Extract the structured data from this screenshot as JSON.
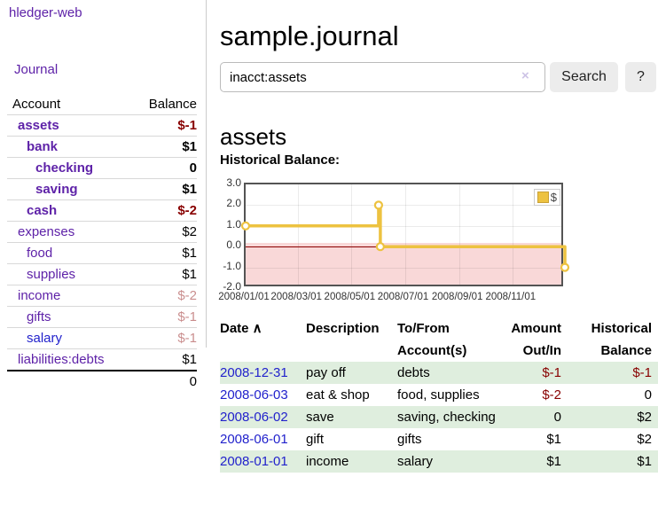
{
  "colors": {
    "purple": "#5e22a8",
    "blue": "#2222cc",
    "negative": "#880000",
    "row_green": "#dfeede",
    "gold": "#edc240",
    "pink": "#f9d8d8",
    "zero": "#8b0000"
  },
  "sidebar": {
    "brand": "hledger-web",
    "journal_link": "Journal",
    "accounts": {
      "headers": {
        "account": "Account",
        "balance": "Balance"
      },
      "rows": [
        {
          "name": "assets",
          "level": 1,
          "bold": true,
          "balance": "$-1",
          "balance_class": "neg"
        },
        {
          "name": "bank",
          "level": 2,
          "bold": true,
          "balance": "$1",
          "balance_class": ""
        },
        {
          "name": "checking",
          "level": 3,
          "bold": true,
          "balance": "0",
          "balance_class": ""
        },
        {
          "name": "saving",
          "level": 3,
          "bold": true,
          "balance": "$1",
          "balance_class": ""
        },
        {
          "name": "cash",
          "level": 2,
          "bold": true,
          "balance": "$-2",
          "balance_class": "neg"
        },
        {
          "name": "expenses",
          "level": 1,
          "bold": false,
          "balance": "$2",
          "balance_class": ""
        },
        {
          "name": "food",
          "level": 2,
          "bold": false,
          "balance": "$1",
          "balance_class": ""
        },
        {
          "name": "supplies",
          "level": 2,
          "bold": false,
          "balance": "$1",
          "balance_class": ""
        },
        {
          "name": "income",
          "level": 1,
          "bold": false,
          "balance": "$-2",
          "balance_class": "neg-muted"
        },
        {
          "name": "gifts",
          "level": 2,
          "bold": false,
          "balance": "$-1",
          "balance_class": "neg-muted"
        },
        {
          "name": "salary",
          "level": 2,
          "bold": false,
          "link_color": "blue",
          "balance": "$-1",
          "balance_class": "neg-muted"
        },
        {
          "name": "liabilities:debts",
          "level": 1,
          "bold": false,
          "balance": "$1",
          "balance_class": ""
        }
      ],
      "total": "0"
    }
  },
  "header": {
    "title": "sample.journal"
  },
  "search": {
    "query": "inacct:assets",
    "clear_icon": "×",
    "button_label": "Search",
    "help_label": "?"
  },
  "account_page": {
    "title": "assets",
    "chart_heading": "Historical Balance:"
  },
  "chart_data": {
    "type": "line",
    "title": "Historical Balance",
    "step": true,
    "legend": "$",
    "legend_position": "top-right",
    "grid": true,
    "x_start": "2008-01-01",
    "x_end": "2008-12-31",
    "ylim": [
      -2,
      3
    ],
    "y_ticks": [
      3.0,
      2.0,
      1.0,
      0.0,
      -1.0,
      -2.0
    ],
    "x_ticks": [
      {
        "date": "2008-01-01",
        "label": "2008/01/01"
      },
      {
        "date": "2008-03-01",
        "label": "2008/03/01"
      },
      {
        "date": "2008-05-01",
        "label": "2008/05/01"
      },
      {
        "date": "2008-07-01",
        "label": "2008/07/01"
      },
      {
        "date": "2008-09-01",
        "label": "2008/09/01"
      },
      {
        "date": "2008-11-01",
        "label": "2008/11/01"
      }
    ],
    "series": [
      {
        "name": "$",
        "color": "#edc240",
        "points": [
          {
            "date": "2008-01-01",
            "value": 1
          },
          {
            "date": "2008-06-01",
            "value": 2
          },
          {
            "date": "2008-06-03",
            "value": 0
          },
          {
            "date": "2008-12-31",
            "value": -1
          }
        ]
      }
    ]
  },
  "register": {
    "columns": [
      {
        "label": "Date",
        "align": "left",
        "sorted": true
      },
      {
        "label": "Description",
        "align": "left"
      },
      {
        "label": "To/From Account(s)",
        "align": "left"
      },
      {
        "label": "Amount Out/In",
        "align": "right"
      },
      {
        "label": "Historical Balance",
        "align": "right"
      }
    ],
    "sort_indicator": "∧",
    "rows": [
      {
        "date": "2008-12-31",
        "description": "pay off",
        "accounts": "debts",
        "amount": "$-1",
        "amount_neg": true,
        "balance": "$-1",
        "balance_neg": true,
        "shaded": true
      },
      {
        "date": "2008-06-03",
        "description": "eat & shop",
        "accounts": "food, supplies",
        "amount": "$-2",
        "amount_neg": true,
        "balance": "0",
        "balance_neg": false,
        "shaded": false
      },
      {
        "date": "2008-06-02",
        "description": "save",
        "accounts": "saving, checking",
        "amount": "0",
        "amount_neg": false,
        "balance": "$2",
        "balance_neg": false,
        "shaded": true
      },
      {
        "date": "2008-06-01",
        "description": "gift",
        "accounts": "gifts",
        "amount": "$1",
        "amount_neg": false,
        "balance": "$2",
        "balance_neg": false,
        "shaded": false
      },
      {
        "date": "2008-01-01",
        "description": "income",
        "accounts": "salary",
        "amount": "$1",
        "amount_neg": false,
        "balance": "$1",
        "balance_neg": false,
        "shaded": true
      }
    ]
  }
}
